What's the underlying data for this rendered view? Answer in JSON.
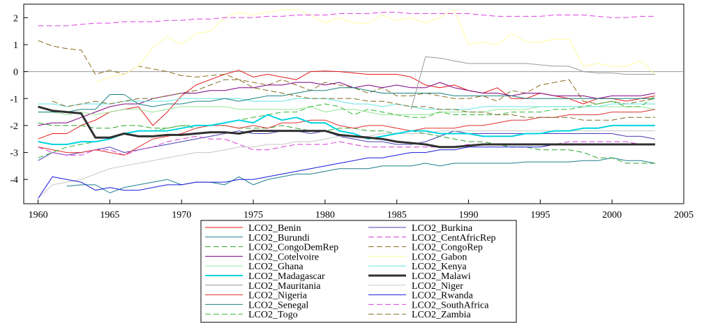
{
  "chart_data": {
    "type": "line",
    "title": "",
    "xlabel": "",
    "ylabel": "",
    "xlim": [
      1959,
      2005
    ],
    "ylim": [
      -4.9,
      2.5
    ],
    "xticks": [
      1960,
      1965,
      1970,
      1975,
      1980,
      1985,
      1990,
      1995,
      2000,
      2005
    ],
    "yticks": [
      -4,
      -3,
      -2,
      -1,
      0,
      1,
      2
    ],
    "reference_line": 0,
    "grid": false,
    "legend_position": "bottom",
    "x": [
      1960,
      1961,
      1962,
      1963,
      1964,
      1965,
      1966,
      1967,
      1968,
      1969,
      1970,
      1971,
      1972,
      1973,
      1974,
      1975,
      1976,
      1977,
      1978,
      1979,
      1980,
      1981,
      1982,
      1983,
      1984,
      1985,
      1986,
      1987,
      1988,
      1989,
      1990,
      1991,
      1992,
      1993,
      1994,
      1995,
      1996,
      1997,
      1998,
      1999,
      2000,
      2001,
      2002,
      2003
    ],
    "series": [
      {
        "name": "LCO2_Benin",
        "color": "#e41a1c",
        "dash": "solid",
        "width": 1,
        "values": [
          -2.5,
          -2.3,
          -2.3,
          -2.0,
          -1.8,
          -1.5,
          -1.4,
          -1.3,
          -2.0,
          -1.5,
          -0.9,
          -0.5,
          -0.3,
          -0.1,
          0.05,
          -0.2,
          -0.1,
          -0.2,
          -0.3,
          0.0,
          0.02,
          0.0,
          -0.05,
          -0.1,
          -0.1,
          -0.1,
          -0.2,
          -0.5,
          -0.6,
          -0.5,
          -0.7,
          -0.8,
          -0.6,
          -1.0,
          -1.0,
          -0.8,
          -0.9,
          -1.0,
          -1.2,
          -1.0,
          -1.0,
          -1.1,
          -1.0,
          -0.9
        ]
      },
      {
        "name": "LCO2_Burkina",
        "color": "#4a3fb5",
        "dash": "solid",
        "width": 1,
        "values": [
          -3.3,
          -3.0,
          -3.1,
          -3.0,
          -2.9,
          -2.8,
          -3.0,
          -2.9,
          -2.8,
          -2.7,
          -2.6,
          -2.5,
          -2.4,
          -2.3,
          -2.2,
          -2.3,
          -2.3,
          -2.2,
          -2.2,
          -2.3,
          -2.2,
          -2.4,
          -2.5,
          -2.6,
          -2.6,
          -2.7,
          -2.7,
          -2.6,
          -2.4,
          -2.2,
          -2.3,
          -2.3,
          -2.3,
          -2.3,
          -2.3,
          -2.3,
          -2.3,
          -2.3,
          -2.3,
          -2.3,
          -2.3,
          -2.4,
          -2.4,
          -2.5
        ]
      },
      {
        "name": "LCO2_Burundi",
        "color": "#1f7f8f",
        "dash": "solid",
        "width": 1,
        "values": [
          null,
          null,
          -4.25,
          -4.2,
          -4.2,
          -4.5,
          -4.3,
          -4.2,
          -4.1,
          -4.0,
          -4.2,
          -4.1,
          -4.1,
          -4.2,
          -3.9,
          -4.2,
          -4.0,
          -3.9,
          -3.8,
          -3.8,
          -3.7,
          -3.6,
          -3.6,
          -3.6,
          -3.5,
          -3.5,
          -3.5,
          -3.4,
          -3.5,
          -3.4,
          -3.4,
          -3.4,
          -3.4,
          -3.4,
          -3.35,
          -3.35,
          -3.35,
          -3.35,
          -3.3,
          -3.3,
          -3.2,
          -3.3,
          -3.3,
          -3.4
        ]
      },
      {
        "name": "LCO2_CentAfricRep",
        "color": "#d63ad6",
        "dash": "dash",
        "width": 1,
        "values": [
          -2.8,
          -3.0,
          -3.1,
          -3.1,
          -2.9,
          -2.9,
          -3.1,
          -2.9,
          -2.8,
          -2.6,
          -2.5,
          -2.4,
          -2.5,
          -2.5,
          -2.7,
          -2.9,
          -2.9,
          -2.8,
          -2.7,
          -2.7,
          -2.7,
          -2.6,
          -2.7,
          -2.8,
          -2.8,
          -2.8,
          -2.8,
          -2.8,
          -2.8,
          -2.8,
          -2.7,
          -2.7,
          -2.7,
          -2.7,
          -2.7,
          -2.7,
          -2.7,
          -2.6,
          -2.6,
          -2.6,
          -2.6,
          -2.6,
          -2.7,
          -2.7
        ]
      },
      {
        "name": "LCO2_CongoDemRep",
        "color": "#2ca02c",
        "dash": "dash",
        "width": 1,
        "values": [
          -1.9,
          -2.0,
          -2.0,
          -2.0,
          -2.1,
          -2.1,
          -2.0,
          -2.0,
          -2.1,
          -2.1,
          -2.0,
          -2.1,
          -2.0,
          -2.0,
          -2.1,
          -2.1,
          -2.1,
          -2.0,
          -2.1,
          -2.2,
          -2.2,
          -2.1,
          -2.1,
          -2.2,
          -2.2,
          -2.3,
          -2.2,
          -2.3,
          -2.4,
          -2.5,
          -2.6,
          -2.6,
          -2.7,
          -2.8,
          -2.8,
          -2.9,
          -2.9,
          -2.9,
          -3.0,
          -3.2,
          -3.2,
          -3.4,
          -3.4,
          -3.4
        ]
      },
      {
        "name": "LCO2_CongoRep",
        "color": "#8b6b1f",
        "dash": "dash",
        "width": 1,
        "values": [
          1.15,
          0.95,
          0.85,
          0.8,
          -0.1,
          0.05,
          -0.1,
          0.2,
          0.1,
          0.0,
          -0.15,
          -0.2,
          -0.15,
          -0.1,
          -0.3,
          -0.4,
          -0.5,
          -0.3,
          -0.5,
          -0.7,
          -0.4,
          -0.5,
          -0.6,
          -0.8,
          -0.6,
          -0.9,
          -0.9,
          -0.8,
          -0.9,
          -1.0,
          -1.0,
          -0.9,
          -1.1,
          -0.7,
          -0.8,
          -0.5,
          -0.4,
          -0.3,
          -1.1,
          -1.2,
          -1.1,
          -1.2,
          -1.1,
          -1.0
        ]
      },
      {
        "name": "LCO2_Cotelvoire",
        "color": "#800080",
        "dash": "solid",
        "width": 1,
        "values": [
          -2.0,
          -1.9,
          -1.9,
          -1.7,
          -1.5,
          -1.3,
          -1.2,
          -1.2,
          -1.0,
          -0.9,
          -0.8,
          -0.8,
          -0.7,
          -0.7,
          -0.6,
          -0.6,
          -0.5,
          -0.5,
          -0.4,
          -0.4,
          -0.5,
          -0.4,
          -0.6,
          -0.5,
          -0.6,
          -0.5,
          -0.6,
          -0.6,
          -0.4,
          -0.6,
          -0.7,
          -0.8,
          -0.8,
          -0.9,
          -0.8,
          -0.8,
          -0.9,
          -0.9,
          -0.9,
          -1.0,
          -0.9,
          -0.9,
          -0.9,
          -0.8
        ]
      },
      {
        "name": "LCO2_Gabon",
        "color": "#fffba0",
        "dash": "solid",
        "width": 1,
        "values": [
          null,
          null,
          null,
          null,
          -0.4,
          -0.2,
          -0.1,
          0.2,
          0.9,
          1.3,
          1.0,
          1.4,
          1.5,
          2.0,
          2.2,
          2.1,
          2.2,
          2.3,
          2.3,
          2.1,
          1.8,
          2.0,
          1.8,
          1.8,
          2.1,
          1.9,
          2.0,
          1.8,
          2.0,
          2.3,
          1.0,
          1.1,
          1.0,
          1.4,
          1.1,
          1.1,
          1.2,
          1.2,
          0.2,
          0.3,
          0.2,
          0.2,
          0.4,
          -0.1
        ]
      },
      {
        "name": "LCO2_Ghana",
        "color": "#98e698",
        "dash": "solid",
        "width": 1,
        "values": [
          -1.5,
          -1.5,
          -1.6,
          -1.5,
          -1.6,
          -1.5,
          -1.4,
          -1.4,
          -1.5,
          -1.4,
          -1.3,
          -1.3,
          -1.3,
          -1.3,
          -1.4,
          -1.4,
          -1.4,
          -1.4,
          -1.4,
          -1.3,
          -1.5,
          -1.4,
          -1.4,
          -1.5,
          -1.6,
          -1.6,
          -1.6,
          -1.6,
          -1.5,
          -1.5,
          -1.5,
          -1.5,
          -1.4,
          -1.4,
          -1.4,
          -1.3,
          -1.3,
          -1.3,
          -1.3,
          -1.3,
          -1.3,
          -1.3,
          -1.3,
          -1.4
        ]
      },
      {
        "name": "LCO2_Kenya",
        "color": "#66e5e5",
        "dash": "solid",
        "width": 1,
        "values": [
          -1.2,
          -1.2,
          -1.3,
          -1.2,
          -1.2,
          -1.2,
          -1.1,
          -1.1,
          -1.1,
          -1.1,
          -1.0,
          -1.0,
          -1.0,
          -1.0,
          -1.0,
          -1.1,
          -1.1,
          -1.1,
          -1.0,
          -1.0,
          -1.0,
          -1.1,
          -1.2,
          -1.2,
          -1.3,
          -1.2,
          -1.3,
          -1.4,
          -1.4,
          -1.4,
          -1.4,
          -1.3,
          -1.3,
          -1.3,
          -1.3,
          -1.3,
          -1.3,
          -1.3,
          -1.3,
          -1.3,
          -1.2,
          -1.2,
          -1.2,
          -1.2
        ]
      },
      {
        "name": "LCO2_Madagascar",
        "color": "#00d5e0",
        "dash": "solid",
        "width": 2,
        "values": [
          -2.6,
          -2.7,
          -2.7,
          -2.6,
          -2.6,
          -2.5,
          -2.3,
          -2.2,
          -2.2,
          -2.2,
          -2.1,
          -2.0,
          -2.0,
          -1.9,
          -1.8,
          -1.9,
          -1.6,
          -1.8,
          -1.7,
          -1.9,
          -1.9,
          -2.2,
          -2.3,
          -2.5,
          -2.4,
          -2.3,
          -2.2,
          -2.2,
          -2.3,
          -2.3,
          -2.3,
          -2.4,
          -2.4,
          -2.4,
          -2.3,
          -2.3,
          -2.2,
          -2.2,
          -2.1,
          -2.1,
          -2.0,
          -2.0,
          -2.0,
          -2.0
        ]
      },
      {
        "name": "LCO2_Malawi",
        "color": "#303030",
        "dash": "solid",
        "width": 3,
        "values": [
          -1.3,
          -1.45,
          -1.5,
          -1.55,
          -2.45,
          -2.45,
          -2.3,
          -2.4,
          -2.4,
          -2.35,
          -2.35,
          -2.3,
          -2.25,
          -2.25,
          -2.3,
          -2.2,
          -2.2,
          -2.2,
          -2.2,
          -2.2,
          -2.2,
          -2.35,
          -2.4,
          -2.45,
          -2.5,
          -2.6,
          -2.65,
          -2.7,
          -2.8,
          -2.8,
          -2.75,
          -2.7,
          -2.7,
          -2.7,
          -2.7,
          -2.7,
          -2.7,
          -2.7,
          -2.7,
          -2.7,
          -2.7,
          -2.7,
          -2.7,
          -2.7
        ]
      },
      {
        "name": "LCO2_Mauritania",
        "color": "#9a9a9a",
        "dash": "solid",
        "width": 1,
        "values": [
          null,
          null,
          null,
          null,
          null,
          null,
          null,
          null,
          null,
          null,
          null,
          null,
          null,
          null,
          null,
          null,
          null,
          null,
          null,
          null,
          null,
          null,
          null,
          null,
          null,
          null,
          -1.4,
          0.55,
          0.5,
          0.4,
          0.3,
          0.3,
          0.3,
          0.3,
          0.3,
          0.25,
          0.2,
          0.2,
          0.0,
          -0.05,
          -0.05,
          -0.1,
          -0.1,
          -0.1
        ]
      },
      {
        "name": "LCO2_Niger",
        "color": "#c8c8c8",
        "dash": "solid",
        "width": 1,
        "values": [
          -4.7,
          -4.2,
          -4.1,
          -4.0,
          -3.8,
          -3.6,
          -3.5,
          -3.4,
          -3.3,
          -3.2,
          -3.1,
          -3.0,
          -3.0,
          -2.9,
          -2.8,
          -2.8,
          -2.7,
          -2.7,
          -2.6,
          -2.6,
          -2.5,
          -2.4,
          -2.4,
          -2.4,
          -2.3,
          -2.3,
          -2.3,
          -2.3,
          -2.2,
          -2.2,
          -2.2,
          -2.2,
          -2.2,
          -2.2,
          -2.2,
          -2.2,
          -2.2,
          -2.2,
          -2.2,
          -2.2,
          -2.2,
          -2.2,
          -2.2,
          -2.2
        ]
      },
      {
        "name": "LCO2_Nigeria",
        "color": "#e03030",
        "dash": "solid",
        "width": 1,
        "values": [
          -2.8,
          -2.9,
          -3.0,
          -3.0,
          -2.9,
          -3.0,
          -3.1,
          -2.8,
          -2.5,
          -2.4,
          -2.3,
          -2.1,
          -2.0,
          -2.0,
          -2.1,
          -2.0,
          -2.1,
          -1.9,
          -1.9,
          -1.8,
          -1.8,
          -2.0,
          -2.1,
          -2.0,
          -2.0,
          -2.1,
          -2.2,
          -2.1,
          -2.1,
          -2.1,
          -2.0,
          -2.0,
          -1.9,
          -1.8,
          -1.8,
          -1.7,
          -1.7,
          -1.6,
          -1.6,
          -1.6,
          -1.5,
          -1.5,
          -1.5,
          -1.4
        ]
      },
      {
        "name": "LCO2_Rwanda",
        "color": "#1a1ad9",
        "dash": "solid",
        "width": 1,
        "values": [
          -4.7,
          -3.9,
          -4.0,
          -4.1,
          -4.4,
          -4.3,
          -4.4,
          -4.4,
          -4.3,
          -4.2,
          -4.2,
          -4.1,
          -4.1,
          -4.1,
          -4.0,
          -4.0,
          -3.9,
          -3.8,
          -3.7,
          -3.6,
          -3.5,
          -3.4,
          -3.3,
          -3.2,
          -3.2,
          -3.1,
          -3.0,
          -3.0,
          -2.9,
          -2.9,
          -2.8,
          -2.8,
          -2.8,
          -2.8,
          -2.8,
          -2.8,
          -2.7,
          -2.7,
          -2.7,
          -2.7,
          -2.7,
          -2.7,
          -2.7,
          -2.7
        ]
      },
      {
        "name": "LCO2_Senegal",
        "color": "#1a8080",
        "dash": "solid",
        "width": 1,
        "values": [
          -1.5,
          -1.5,
          -1.5,
          -1.4,
          -1.4,
          -0.85,
          -0.85,
          -1.2,
          -1.3,
          -1.2,
          -1.2,
          -1.1,
          -1.1,
          -1.0,
          -1.1,
          -1.0,
          -0.9,
          -0.9,
          -0.8,
          -0.7,
          -0.7,
          -0.6,
          -0.6,
          -0.7,
          -0.8,
          -0.8,
          -0.8,
          -0.8,
          -0.8,
          -0.9,
          -0.9,
          -0.9,
          -0.9,
          -0.9,
          -1.0,
          -1.0,
          -1.0,
          -1.0,
          -1.0,
          -1.0,
          -1.0,
          -1.0,
          -1.0,
          -1.0
        ]
      },
      {
        "name": "LCO2_SouthAfrica",
        "color": "#e040e0",
        "dash": "dash",
        "width": 1,
        "values": [
          1.7,
          1.7,
          1.7,
          1.75,
          1.8,
          1.8,
          1.85,
          1.85,
          1.85,
          1.9,
          1.9,
          1.95,
          1.95,
          2.0,
          2.0,
          2.0,
          2.05,
          2.05,
          2.1,
          2.1,
          2.1,
          2.15,
          2.15,
          2.15,
          2.2,
          2.2,
          2.15,
          2.15,
          2.15,
          2.15,
          2.15,
          2.1,
          2.05,
          2.05,
          2.05,
          2.05,
          2.1,
          2.1,
          2.1,
          2.05,
          2.0,
          2.0,
          2.05,
          2.05
        ]
      },
      {
        "name": "LCO2_Togo",
        "color": "#33b833",
        "dash": "dash",
        "width": 1,
        "values": [
          -3.2,
          -3.0,
          -2.8,
          -2.7,
          -2.6,
          -2.5,
          -2.3,
          -2.2,
          -2.2,
          -2.1,
          -2.0,
          -2.0,
          -2.0,
          -1.9,
          -1.8,
          -1.7,
          -1.6,
          -1.5,
          -1.5,
          -1.3,
          -1.2,
          -1.3,
          -1.6,
          -1.4,
          -1.5,
          -1.6,
          -1.7,
          -1.7,
          -1.5,
          -1.6,
          -1.6,
          -1.6,
          -1.6,
          -1.5,
          -1.5,
          -1.5,
          -1.4,
          -1.4,
          -1.3,
          -1.2,
          -1.1,
          -1.3,
          -1.3,
          -0.9
        ]
      },
      {
        "name": "LCO2_Zambia",
        "color": "#7a6a20",
        "dash": "dash",
        "width": 1,
        "values": [
          null,
          -1.1,
          -1.3,
          -1.2,
          -1.1,
          -1.2,
          -1.1,
          -1.0,
          -1.0,
          -0.9,
          -0.8,
          -0.7,
          -0.5,
          -0.3,
          -0.3,
          -0.6,
          -0.7,
          -0.8,
          -0.9,
          -1.0,
          -1.0,
          -1.0,
          -1.0,
          -1.1,
          -1.1,
          -1.2,
          -1.3,
          -1.3,
          -1.4,
          -1.4,
          -1.5,
          -1.5,
          -1.6,
          -1.6,
          -1.7,
          -1.7,
          -1.7,
          -1.7,
          -1.8,
          -1.8,
          -1.8,
          -1.7,
          -1.7,
          -1.7
        ]
      }
    ]
  }
}
